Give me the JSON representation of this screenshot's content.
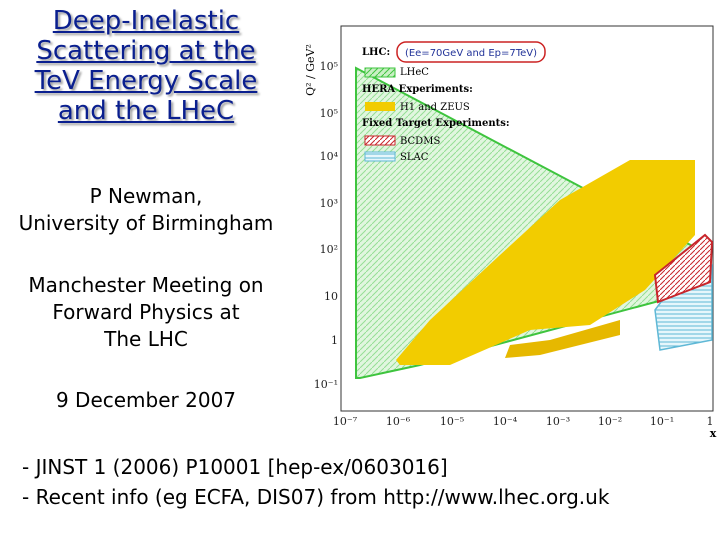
{
  "title": {
    "lines": [
      "Deep-Inelastic",
      "Scattering at the",
      "TeV Energy Scale",
      "and the LHeC"
    ]
  },
  "author": {
    "name": "P Newman,",
    "affiliation": "University of Birmingham"
  },
  "meeting": {
    "lines": [
      "Manchester Meeting on",
      "Forward  Physics at",
      "The LHC"
    ]
  },
  "date": "9 December 2007",
  "references": [
    "- JINST 1 (2006) P10001 [hep-ex/0603016]",
    "- Recent info (eg ECFA, DIS07) from http://www.lhec.org.uk"
  ],
  "figure": {
    "y_axis_label": "Q² / GeV²",
    "x_axis_label": "x",
    "y_ticks": [
      "10⁵",
      "10⁵",
      "10⁴",
      "10³",
      "10²",
      "10",
      "1",
      "10⁻¹"
    ],
    "x_ticks": [
      "10⁻⁷",
      "10⁻⁶",
      "10⁻⁵",
      "10⁻⁴",
      "10⁻³",
      "10⁻²",
      "10⁻¹",
      "1"
    ],
    "legend": {
      "lhc_heading": "LHC:",
      "beam_note": "(Ee=70GeV and Ep=7TeV)",
      "lhec_label": "LHeC",
      "hera_heading": "HERA Experiments:",
      "hera_label": "H1  and  ZEUS",
      "fixed_heading": "Fixed Target Experiments:",
      "bcdms_label": "BCDMS",
      "slac_label": "SLAC"
    },
    "colors": {
      "lhec": "#3ec43e",
      "hera": "#f2cc00",
      "bcdms": "#c8262b",
      "slac": "#5fb8d6",
      "annotation": "#cc2222"
    }
  }
}
